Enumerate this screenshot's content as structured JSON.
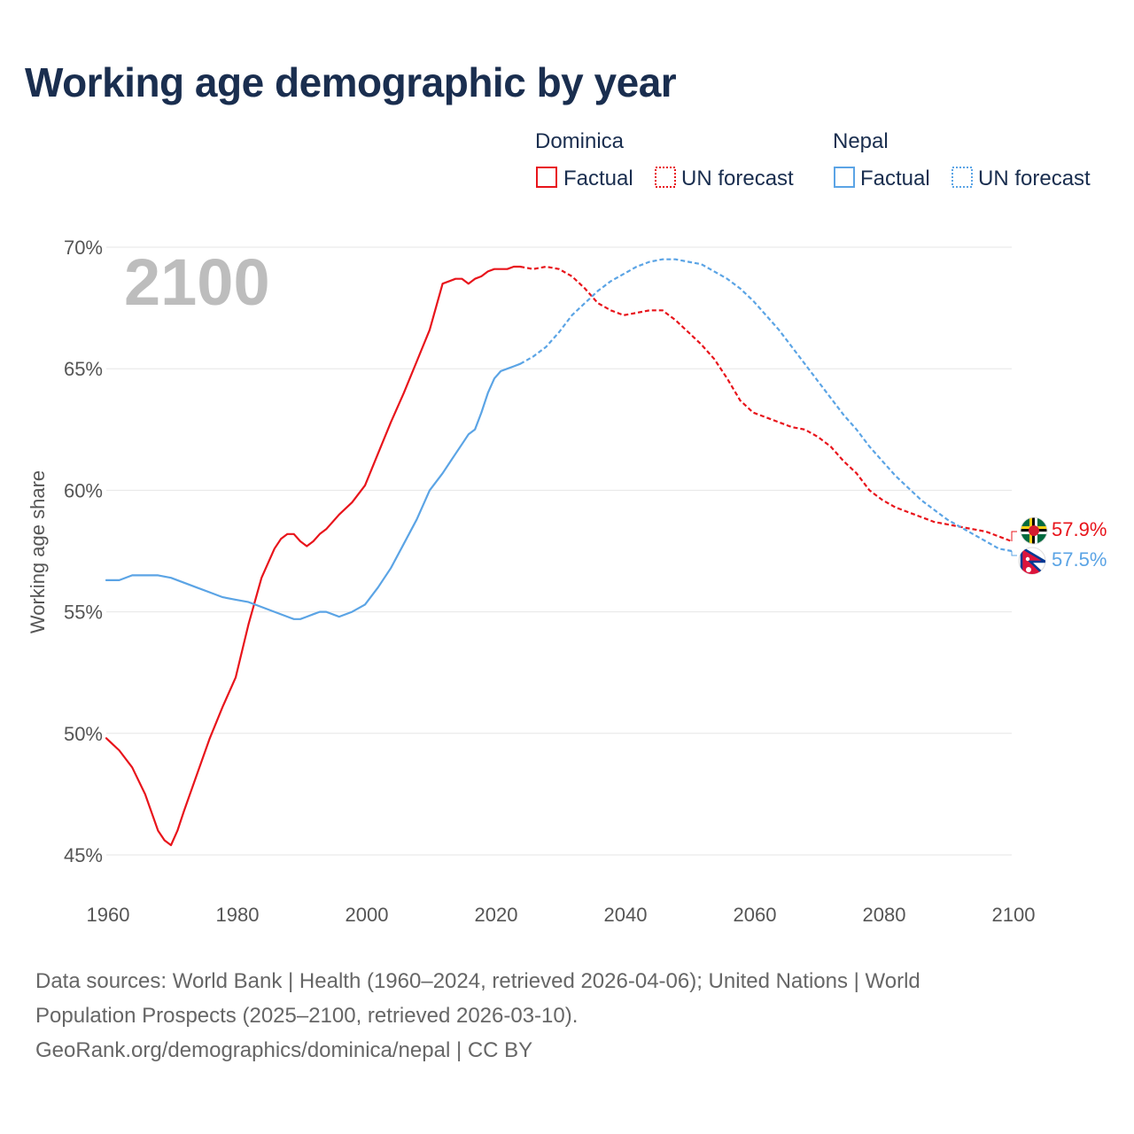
{
  "title": "Working age demographic by year",
  "year_watermark": "2100",
  "legend": {
    "groups": [
      {
        "country": "Dominica",
        "color": "#e8141b",
        "items": [
          "Factual",
          "UN forecast"
        ]
      },
      {
        "country": "Nepal",
        "color": "#5ba4e5",
        "items": [
          "Factual",
          "UN forecast"
        ]
      }
    ]
  },
  "source": {
    "line1": "Data sources: World Bank | Health (1960–2024, retrieved 2026-04-06); United Nations | World",
    "line2": "Population Prospects (2025–2100, retrieved 2026-03-10).",
    "line3": "GeoRank.org/demographics/dominica/nepal | CC BY"
  },
  "chart_data": {
    "type": "line",
    "title": "Working age demographic by year",
    "xlabel": "",
    "ylabel": "Working age share",
    "xlim": [
      1960,
      2100
    ],
    "ylim": [
      45,
      70
    ],
    "x_ticks": [
      1960,
      1980,
      2000,
      2020,
      2040,
      2060,
      2080,
      2100
    ],
    "y_ticks": [
      45,
      50,
      55,
      60,
      65,
      70
    ],
    "y_tick_labels": [
      "45%",
      "50%",
      "55%",
      "60%",
      "65%",
      "70%"
    ],
    "grid": true,
    "series": [
      {
        "name": "Dominica",
        "color": "#e8141b",
        "end_label": "57.9%",
        "flag": "dominica",
        "factual": {
          "x": [
            1960,
            1962,
            1964,
            1966,
            1968,
            1969,
            1970,
            1971,
            1972,
            1974,
            1976,
            1978,
            1980,
            1982,
            1984,
            1986,
            1987,
            1988,
            1989,
            1990,
            1991,
            1992,
            1993,
            1994,
            1996,
            1998,
            2000,
            2002,
            2004,
            2006,
            2008,
            2010,
            2012,
            2014,
            2015,
            2016,
            2017,
            2018,
            2019,
            2020,
            2021,
            2022,
            2023,
            2024
          ],
          "y": [
            49.8,
            49.3,
            48.6,
            47.5,
            46.0,
            45.6,
            45.4,
            46.0,
            46.8,
            48.3,
            49.8,
            51.1,
            52.3,
            54.5,
            56.4,
            57.6,
            58.0,
            58.2,
            58.2,
            57.9,
            57.7,
            57.9,
            58.2,
            58.4,
            59.0,
            59.5,
            60.2,
            61.5,
            62.8,
            64.0,
            65.3,
            66.6,
            68.5,
            68.7,
            68.7,
            68.5,
            68.7,
            68.8,
            69.0,
            69.1,
            69.1,
            69.1,
            69.2,
            69.2
          ]
        },
        "forecast": {
          "x": [
            2024,
            2026,
            2028,
            2030,
            2032,
            2034,
            2036,
            2038,
            2040,
            2042,
            2044,
            2046,
            2048,
            2050,
            2052,
            2054,
            2056,
            2058,
            2060,
            2062,
            2064,
            2066,
            2068,
            2070,
            2072,
            2074,
            2076,
            2078,
            2080,
            2082,
            2084,
            2086,
            2088,
            2090,
            2092,
            2094,
            2096,
            2098,
            2100
          ],
          "y": [
            69.2,
            69.1,
            69.2,
            69.1,
            68.8,
            68.3,
            67.7,
            67.4,
            67.2,
            67.3,
            67.4,
            67.4,
            67.0,
            66.5,
            66.0,
            65.4,
            64.6,
            63.7,
            63.2,
            63.0,
            62.8,
            62.6,
            62.5,
            62.2,
            61.8,
            61.2,
            60.7,
            60.0,
            59.6,
            59.3,
            59.1,
            58.9,
            58.7,
            58.6,
            58.5,
            58.4,
            58.3,
            58.1,
            57.9
          ]
        }
      },
      {
        "name": "Nepal",
        "color": "#5ba4e5",
        "end_label": "57.5%",
        "flag": "nepal",
        "factual": {
          "x": [
            1960,
            1962,
            1964,
            1966,
            1968,
            1970,
            1972,
            1974,
            1976,
            1978,
            1980,
            1982,
            1984,
            1986,
            1988,
            1989,
            1990,
            1991,
            1992,
            1993,
            1994,
            1996,
            1998,
            2000,
            2002,
            2004,
            2006,
            2008,
            2010,
            2012,
            2014,
            2015,
            2016,
            2017,
            2018,
            2019,
            2020,
            2021,
            2022,
            2023,
            2024
          ],
          "y": [
            56.3,
            56.3,
            56.5,
            56.5,
            56.5,
            56.4,
            56.2,
            56.0,
            55.8,
            55.6,
            55.5,
            55.4,
            55.2,
            55.0,
            54.8,
            54.7,
            54.7,
            54.8,
            54.9,
            55.0,
            55.0,
            54.8,
            55.0,
            55.3,
            56.0,
            56.8,
            57.8,
            58.8,
            60.0,
            60.7,
            61.5,
            61.9,
            62.3,
            62.5,
            63.2,
            64.0,
            64.6,
            64.9,
            65.0,
            65.1,
            65.2
          ]
        },
        "forecast": {
          "x": [
            2024,
            2026,
            2028,
            2030,
            2032,
            2034,
            2036,
            2038,
            2040,
            2042,
            2044,
            2046,
            2048,
            2050,
            2052,
            2054,
            2056,
            2058,
            2060,
            2062,
            2064,
            2066,
            2068,
            2070,
            2072,
            2074,
            2076,
            2078,
            2080,
            2082,
            2084,
            2086,
            2088,
            2090,
            2092,
            2094,
            2096,
            2098,
            2100
          ],
          "y": [
            65.2,
            65.5,
            65.9,
            66.5,
            67.2,
            67.7,
            68.2,
            68.6,
            68.9,
            69.2,
            69.4,
            69.5,
            69.5,
            69.4,
            69.3,
            69.0,
            68.7,
            68.3,
            67.8,
            67.2,
            66.6,
            65.9,
            65.2,
            64.5,
            63.8,
            63.1,
            62.5,
            61.8,
            61.2,
            60.6,
            60.1,
            59.6,
            59.2,
            58.8,
            58.5,
            58.2,
            57.9,
            57.6,
            57.5
          ]
        }
      }
    ]
  }
}
